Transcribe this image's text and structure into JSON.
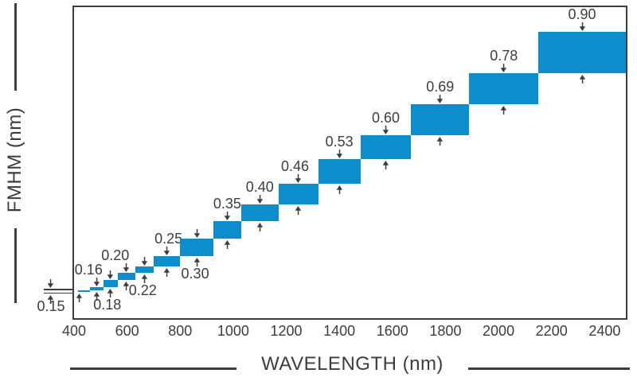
{
  "colors": {
    "bar": "#0B8ECB",
    "ink": "#3D3D3D",
    "background": "#FFFFFF"
  },
  "chart_data": {
    "type": "bar",
    "subtype": "floating-step-bands",
    "title": "",
    "xlabel": "WAVELENGTH (nm)",
    "ylabel": "FMHM (nm)",
    "x_range_nm": [
      400,
      2480
    ],
    "y_range_fwhm_nm": [
      0.07,
      0.98
    ],
    "grid": false,
    "legend": false,
    "x_ticks": [
      400,
      600,
      800,
      1000,
      1200,
      1400,
      1600,
      1800,
      2000,
      2200,
      2400
    ],
    "bands": [
      {
        "wavelength_nm": [
          415,
          460
        ],
        "fwhm_nm": [
          0.145,
          0.15
        ],
        "label": "0.15",
        "label_pos": "outside-left",
        "label_dx": 0
      },
      {
        "wavelength_nm": [
          460,
          510
        ],
        "fwhm_nm": [
          0.15,
          0.16
        ],
        "label": "0.16",
        "label_pos": "above",
        "label_dx": -10
      },
      {
        "wavelength_nm": [
          510,
          565
        ],
        "fwhm_nm": [
          0.16,
          0.18
        ],
        "label": "0.18",
        "label_pos": "below",
        "label_dx": -4
      },
      {
        "wavelength_nm": [
          565,
          630
        ],
        "fwhm_nm": [
          0.18,
          0.2
        ],
        "label": "0.20",
        "label_pos": "above",
        "label_dx": -14
      },
      {
        "wavelength_nm": [
          630,
          700
        ],
        "fwhm_nm": [
          0.2,
          0.22
        ],
        "label": "0.22",
        "label_pos": "below",
        "label_dx": -2
      },
      {
        "wavelength_nm": [
          700,
          800
        ],
        "fwhm_nm": [
          0.22,
          0.25
        ],
        "label": "0.25",
        "label_pos": "above",
        "label_dx": 2
      },
      {
        "wavelength_nm": [
          800,
          925
        ],
        "fwhm_nm": [
          0.25,
          0.3
        ],
        "label": "0.30",
        "label_pos": "below",
        "label_dx": -2
      },
      {
        "wavelength_nm": [
          925,
          1030
        ],
        "fwhm_nm": [
          0.3,
          0.35
        ],
        "label": "0.35",
        "label_pos": "above",
        "label_dx": 0
      },
      {
        "wavelength_nm": [
          1030,
          1170
        ],
        "fwhm_nm": [
          0.35,
          0.4
        ],
        "label": "0.40",
        "label_pos": "above",
        "label_dx": 0
      },
      {
        "wavelength_nm": [
          1170,
          1320
        ],
        "fwhm_nm": [
          0.4,
          0.46
        ],
        "label": "0.46",
        "label_pos": "above",
        "label_dx": -4
      },
      {
        "wavelength_nm": [
          1320,
          1480
        ],
        "fwhm_nm": [
          0.46,
          0.53
        ],
        "label": "0.53",
        "label_pos": "above",
        "label_dx": 0
      },
      {
        "wavelength_nm": [
          1480,
          1670
        ],
        "fwhm_nm": [
          0.53,
          0.6
        ],
        "label": "0.60",
        "label_pos": "above",
        "label_dx": 0
      },
      {
        "wavelength_nm": [
          1670,
          1890
        ],
        "fwhm_nm": [
          0.6,
          0.69
        ],
        "label": "0.69",
        "label_pos": "above",
        "label_dx": 0
      },
      {
        "wavelength_nm": [
          1890,
          2150
        ],
        "fwhm_nm": [
          0.69,
          0.78
        ],
        "label": "0.78",
        "label_pos": "above",
        "label_dx": 0
      },
      {
        "wavelength_nm": [
          2150,
          2480
        ],
        "fwhm_nm": [
          0.78,
          0.9
        ],
        "label": "0.90",
        "label_pos": "above",
        "label_dx": 0
      }
    ]
  }
}
